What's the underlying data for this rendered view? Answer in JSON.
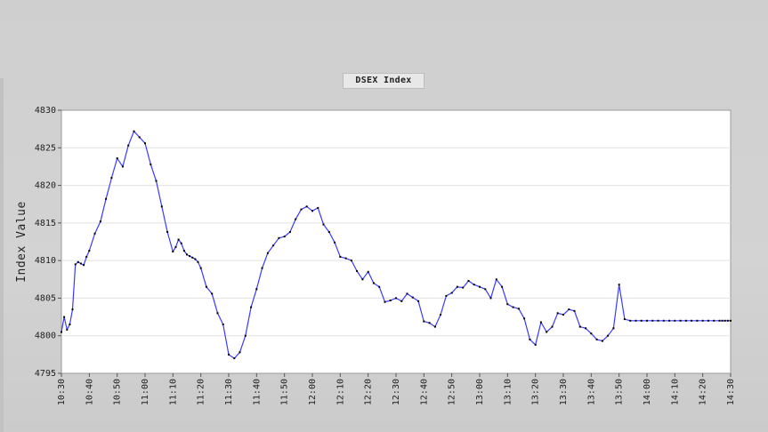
{
  "chart_data": {
    "type": "line",
    "title": "DSEX Index",
    "xlabel": "",
    "ylabel": "Index Value",
    "ylim": [
      4795,
      4830
    ],
    "y_ticks": [
      4795,
      4800,
      4805,
      4810,
      4815,
      4820,
      4825,
      4830
    ],
    "x_ticks": [
      "10:30",
      "10:40",
      "10:50",
      "11:00",
      "11:10",
      "11:20",
      "11:30",
      "11:40",
      "11:50",
      "12:00",
      "12:10",
      "12:20",
      "12:30",
      "12:40",
      "12:50",
      "13:00",
      "13:10",
      "13:20",
      "13:30",
      "13:40",
      "13:50",
      "14:00",
      "14:10",
      "14:20",
      "14:30"
    ],
    "xlim_minutes": [
      0,
      240
    ],
    "grid": "horizontal",
    "line_color": "#3a3aff",
    "marker_color": "#000000",
    "series": [
      {
        "x": [
          0,
          1,
          2,
          3,
          4,
          5,
          6,
          7,
          8,
          9,
          10,
          12,
          14,
          16,
          18,
          20,
          22,
          24,
          26,
          28,
          30,
          32,
          34,
          36,
          38,
          40,
          41,
          42,
          43,
          44,
          45,
          46,
          47,
          48,
          49,
          50,
          52,
          54,
          56,
          58,
          60,
          62,
          64,
          66,
          68,
          70,
          72,
          74,
          76,
          78,
          80,
          82,
          84,
          86,
          88,
          90,
          92,
          94,
          96,
          98,
          100,
          102,
          104,
          106,
          108,
          110,
          112,
          114,
          116,
          118,
          120,
          122,
          124,
          126,
          128,
          130,
          132,
          134,
          136,
          138,
          140,
          142,
          144,
          146,
          148,
          150,
          152,
          154,
          156,
          158,
          160,
          162,
          164,
          166,
          168,
          170,
          172,
          174,
          176,
          178,
          180,
          182,
          184,
          186,
          188,
          190,
          192,
          194,
          196,
          198,
          200,
          202,
          204,
          206,
          208,
          210,
          212,
          214,
          216,
          218,
          220,
          222,
          224,
          226,
          228,
          230,
          232,
          234,
          236,
          237,
          238,
          239,
          240
        ],
        "values": [
          4800.5,
          4802.5,
          4800.8,
          4801.5,
          4803.5,
          4809.5,
          4809.8,
          4809.6,
          4809.4,
          4810.5,
          4811.3,
          4813.6,
          4815.2,
          4818.2,
          4821,
          4823.6,
          4822.5,
          4825.3,
          4827.2,
          4826.4,
          4825.6,
          4822.8,
          4820.6,
          4817.2,
          4813.8,
          4811.2,
          4811.8,
          4812.8,
          4812.3,
          4811.3,
          4810.8,
          4810.6,
          4810.4,
          4810.2,
          4809.8,
          4809,
          4806.5,
          4805.6,
          4803,
          4801.5,
          4797.5,
          4797,
          4797.8,
          4800,
          4803.8,
          4806.2,
          4809,
          4811,
          4812,
          4813,
          4813.2,
          4813.8,
          4815.5,
          4816.8,
          4817.2,
          4816.6,
          4817,
          4814.8,
          4813.8,
          4812.4,
          4810.5,
          4810.3,
          4810,
          4808.6,
          4807.5,
          4808.5,
          4807,
          4806.5,
          4804.5,
          4804.7,
          4805,
          4804.6,
          4805.6,
          4805.1,
          4804.6,
          4801.9,
          4801.7,
          4801.2,
          4802.8,
          4805.3,
          4805.7,
          4806.5,
          4806.4,
          4807.3,
          4806.8,
          4806.5,
          4806.2,
          4805,
          4807.5,
          4806.5,
          4804.2,
          4803.8,
          4803.6,
          4802.3,
          4799.5,
          4798.8,
          4801.8,
          4800.5,
          4801.2,
          4803,
          4802.8,
          4803.5,
          4803.3,
          4801.2,
          4801,
          4800.3,
          4799.5,
          4799.3,
          4800,
          4801,
          4806.8,
          4802.2,
          4802,
          4802,
          4802,
          4802,
          4802,
          4802,
          4802,
          4802,
          4802,
          4802,
          4802,
          4802,
          4802,
          4802,
          4802,
          4802,
          4802,
          4802,
          4802,
          4802,
          4802
        ]
      }
    ]
  }
}
